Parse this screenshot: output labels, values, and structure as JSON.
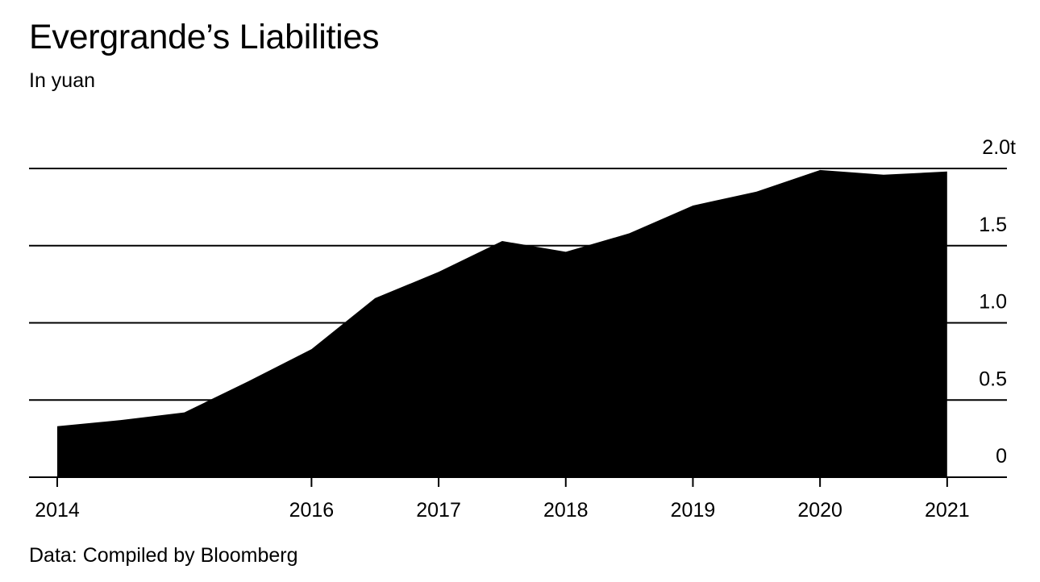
{
  "chart_data": {
    "type": "area",
    "title": "Evergrande’s Liabilities",
    "subtitle": "In yuan",
    "source": "Data: Compiled by Bloomberg",
    "x_unit": "year",
    "x_range": [
      2014.0,
      2021.95
    ],
    "x_ticks": [
      {
        "value": 2014,
        "label": "2014"
      },
      {
        "value": 2016,
        "label": "2016"
      },
      {
        "value": 2017,
        "label": "2017"
      },
      {
        "value": 2018,
        "label": "2018"
      },
      {
        "value": 2019,
        "label": "2019"
      },
      {
        "value": 2020,
        "label": "2020"
      },
      {
        "value": 2021,
        "label": "2021"
      }
    ],
    "y_range": [
      0,
      2.0
    ],
    "y_ticks": [
      {
        "value": 2.0,
        "label": "2.0t"
      },
      {
        "value": 1.5,
        "label": "1.5"
      },
      {
        "value": 1.0,
        "label": "1.0"
      },
      {
        "value": 0.5,
        "label": "0.5"
      },
      {
        "value": 0,
        "label": "0"
      }
    ],
    "grid": true,
    "y_axis_side": "right",
    "points": [
      {
        "x": 2014.0,
        "y": 0.33
      },
      {
        "x": 2014.5,
        "y": 0.37
      },
      {
        "x": 2015.0,
        "y": 0.42
      },
      {
        "x": 2015.5,
        "y": 0.62
      },
      {
        "x": 2016.0,
        "y": 0.83
      },
      {
        "x": 2016.5,
        "y": 1.16
      },
      {
        "x": 2017.0,
        "y": 1.33
      },
      {
        "x": 2017.5,
        "y": 1.53
      },
      {
        "x": 2018.0,
        "y": 1.46
      },
      {
        "x": 2018.5,
        "y": 1.58
      },
      {
        "x": 2019.0,
        "y": 1.76
      },
      {
        "x": 2019.5,
        "y": 1.85
      },
      {
        "x": 2020.0,
        "y": 1.99
      },
      {
        "x": 2020.5,
        "y": 1.96
      },
      {
        "x": 2021.0,
        "y": 1.98
      }
    ],
    "fill_color": "#000000",
    "gridline_color": "#000000"
  }
}
